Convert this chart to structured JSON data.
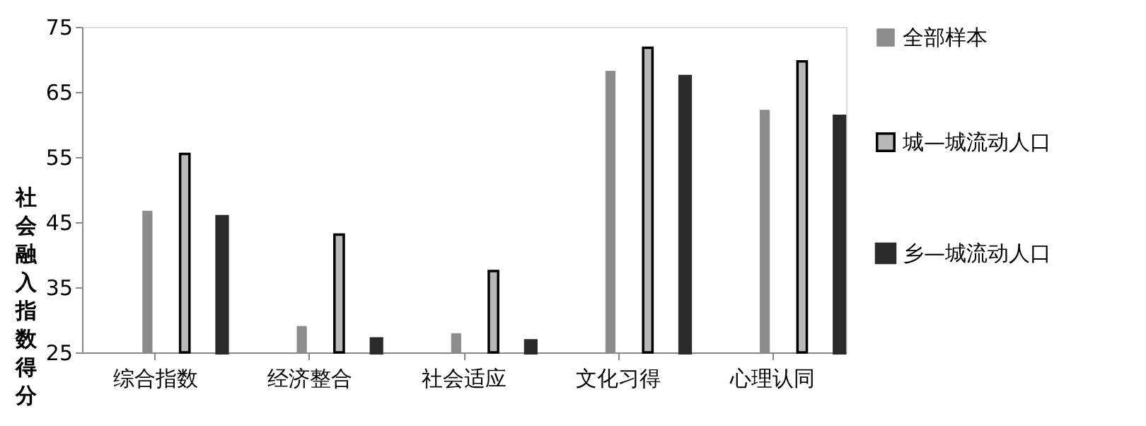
{
  "chart_data": {
    "type": "bar",
    "ylabel": "社会融入指数得分",
    "categories": [
      "综合指数",
      "经济整合",
      "社会适应",
      "文化习得",
      "心理认同"
    ],
    "series": [
      {
        "name": "全部样本",
        "color": "#8c8c8c",
        "values": [
          46.7,
          29.0,
          27.9,
          68.2,
          62.2
        ]
      },
      {
        "name": "城—城流动人口",
        "color": "#b8b8b8",
        "values": [
          55.5,
          43.1,
          37.5,
          71.8,
          69.7
        ]
      },
      {
        "name": "乡—城流动人口",
        "color": "#2a2a2a",
        "values": [
          45.8,
          27.0,
          26.7,
          67.3,
          61.2
        ]
      }
    ],
    "ylim": [
      25,
      75
    ],
    "yticks": [
      25,
      35,
      45,
      55,
      65,
      75
    ],
    "grid": false,
    "legend": "right"
  }
}
